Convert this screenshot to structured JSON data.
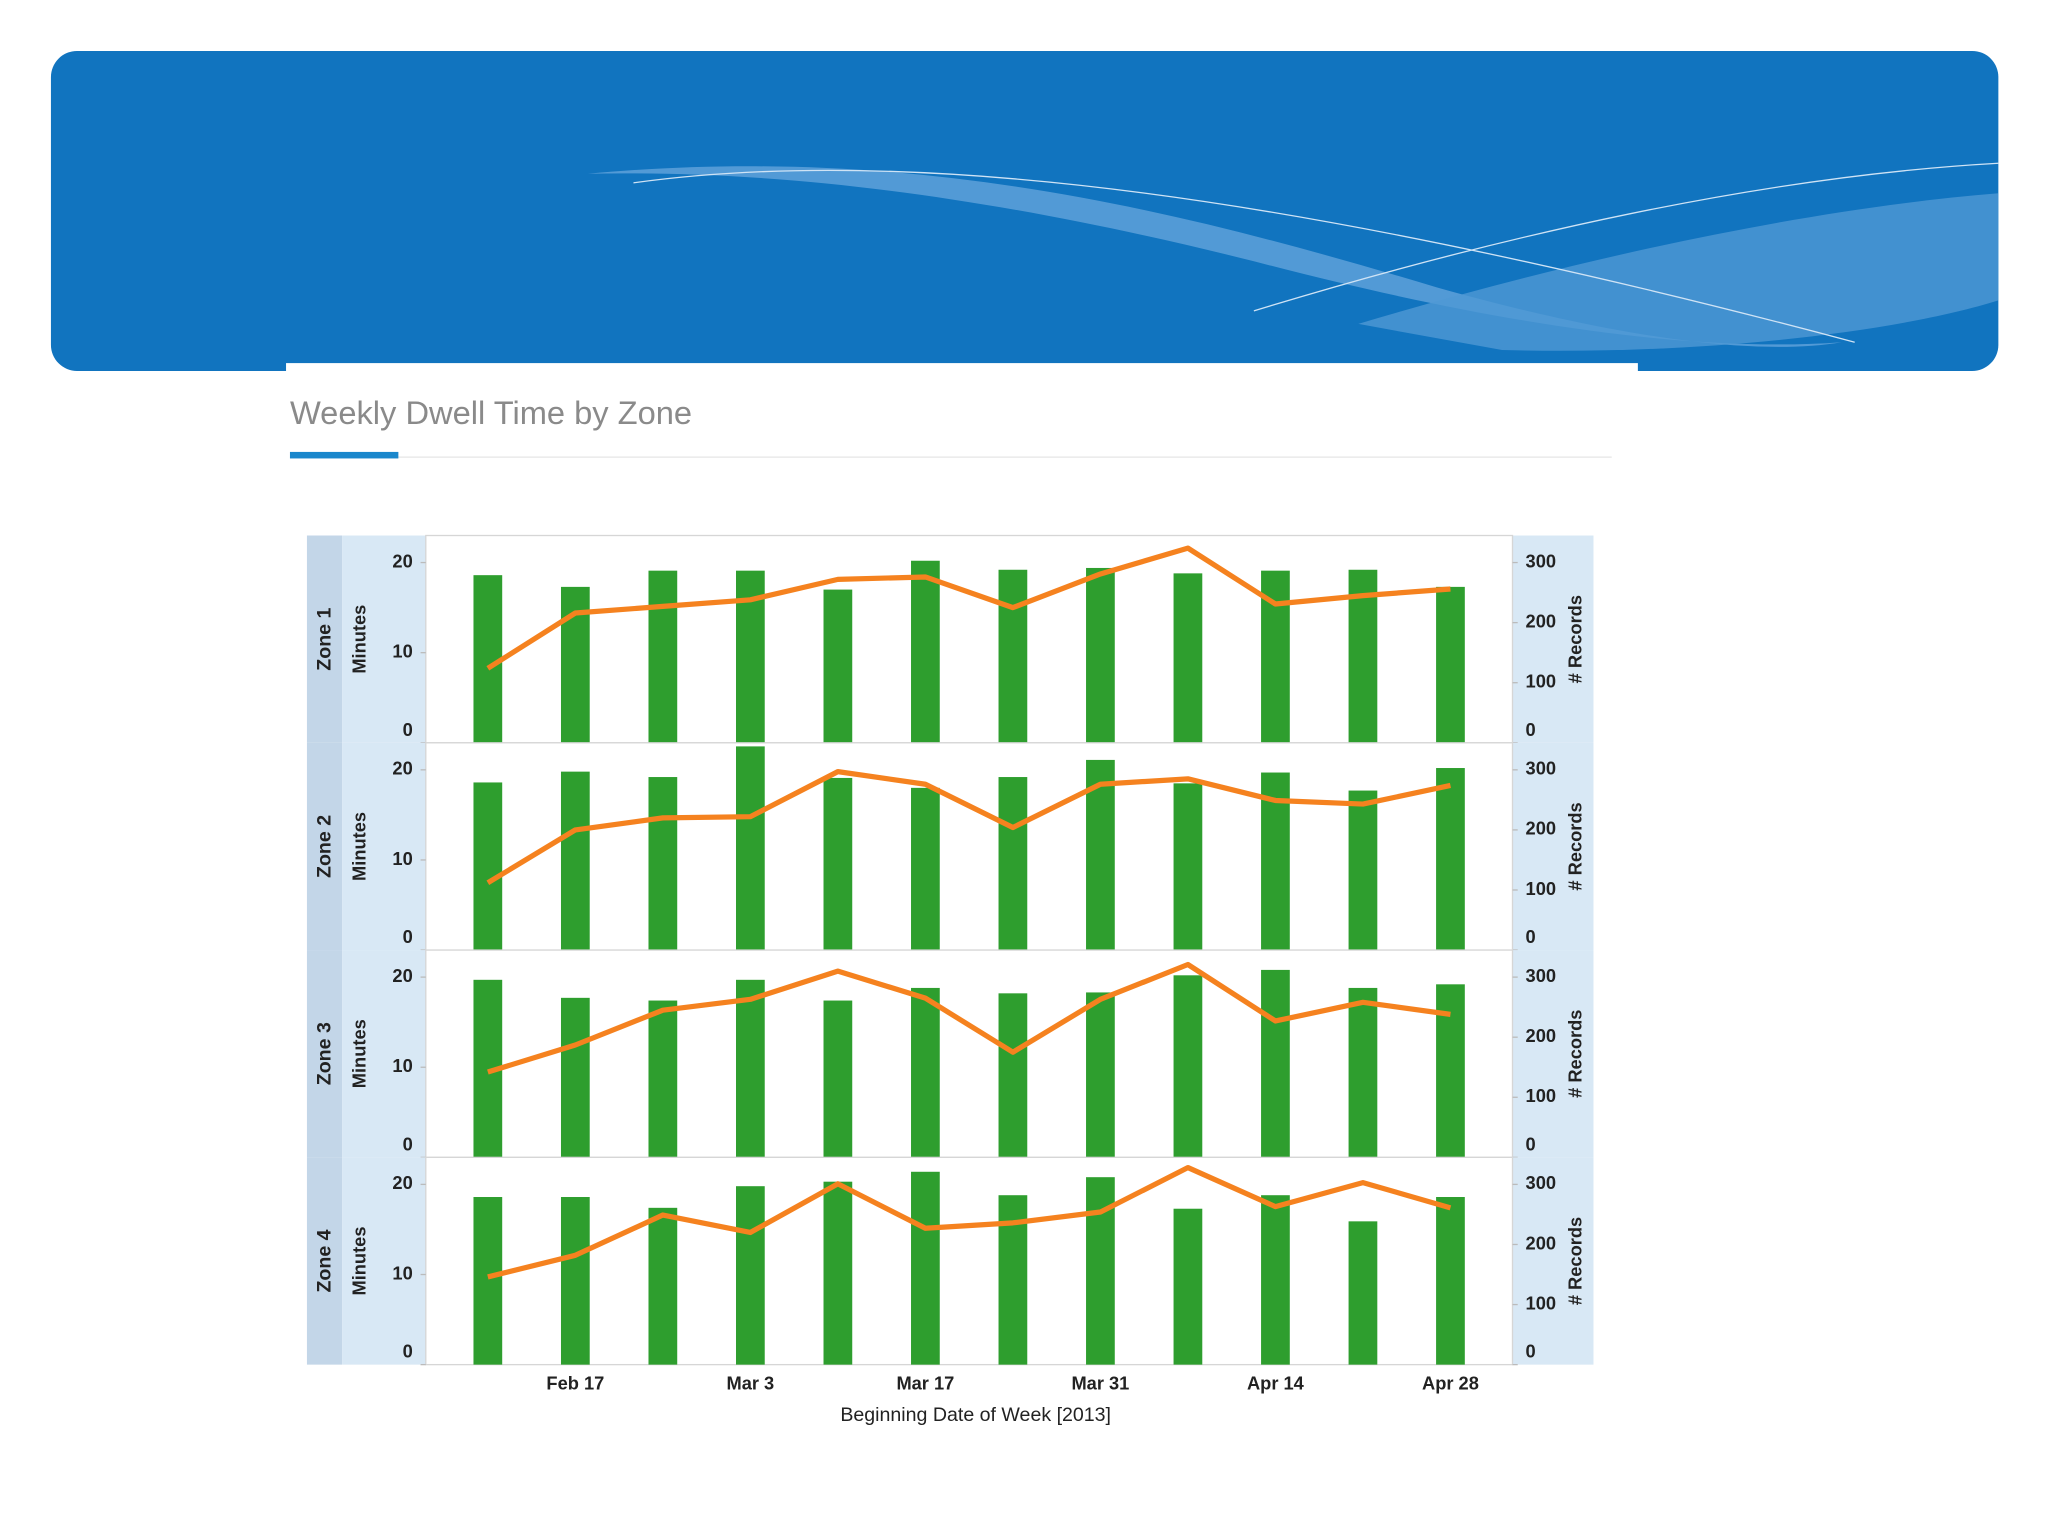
{
  "header": {
    "title": "Weekly Dwell Time by Zone"
  },
  "chart_data": {
    "type": "bar",
    "x_label": "Beginning Date of Week [2013]",
    "categories": [
      null,
      "Feb 17",
      null,
      "Mar 3",
      null,
      "Mar 17",
      null,
      "Mar 31",
      null,
      "Apr 14",
      null,
      "Apr 28"
    ],
    "ylim": [
      0,
      23
    ],
    "yticks": [
      0,
      10,
      20
    ],
    "y2lim": [
      0,
      345
    ],
    "y2ticks": [
      0,
      100,
      200,
      300
    ],
    "ylabel": "Minutes",
    "y2label": "# Records",
    "bar_color": "#2e9e2e",
    "line_color": "#f5821f",
    "facets": [
      {
        "name": "Zone 1",
        "series": [
          {
            "type": "bar",
            "values": [
              18.6,
              17.3,
              19.1,
              19.1,
              17.0,
              20.2,
              19.2,
              19.4,
              18.8,
              19.1,
              19.2,
              17.3
            ]
          },
          {
            "type": "line",
            "axis": "y2",
            "values": [
              124,
              216,
              227,
              238,
              272,
              276,
              225,
              281,
              324,
              231,
              245,
              256
            ]
          }
        ]
      },
      {
        "name": "Zone 2",
        "series": [
          {
            "type": "bar",
            "values": [
              18.6,
              19.8,
              19.2,
              22.6,
              19.1,
              18.0,
              19.2,
              21.1,
              18.5,
              19.7,
              17.7,
              20.2
            ]
          },
          {
            "type": "line",
            "axis": "y2",
            "values": [
              112,
              200,
              220,
              222,
              297,
              276,
              204,
              276,
              285,
              249,
              243,
              274
            ]
          }
        ]
      },
      {
        "name": "Zone 3",
        "series": [
          {
            "type": "bar",
            "values": [
              19.7,
              17.7,
              17.4,
              19.7,
              17.4,
              18.8,
              18.2,
              18.3,
              20.2,
              20.8,
              18.8,
              19.2
            ]
          },
          {
            "type": "line",
            "axis": "y2",
            "values": [
              142,
              187,
              245,
              263,
              310,
              265,
              175,
              263,
              321,
              227,
              258,
              238
            ]
          }
        ]
      },
      {
        "name": "Zone 4",
        "series": [
          {
            "type": "bar",
            "values": [
              18.6,
              18.6,
              17.4,
              19.8,
              20.3,
              21.4,
              18.8,
              20.8,
              17.3,
              18.8,
              15.9,
              18.6
            ]
          },
          {
            "type": "line",
            "axis": "y2",
            "values": [
              146,
              182,
              249,
              220,
              301,
              227,
              236,
              254,
              328,
              263,
              303,
              261
            ]
          }
        ]
      }
    ]
  }
}
